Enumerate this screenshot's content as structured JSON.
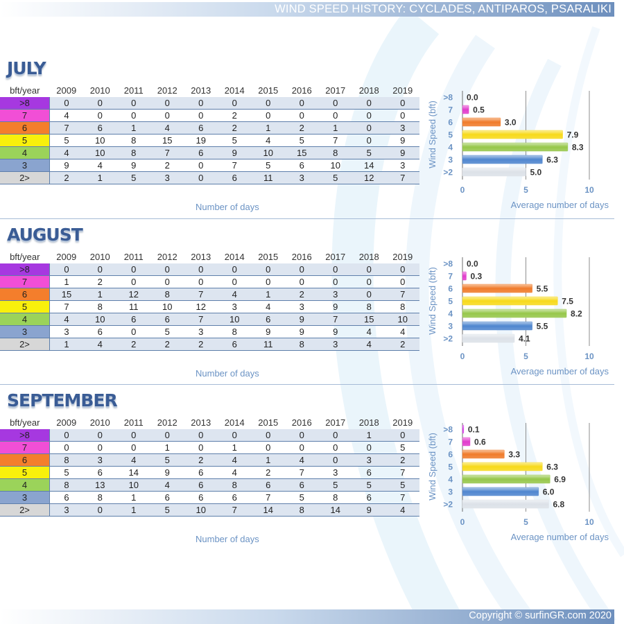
{
  "header": {
    "title": "WIND SPEED HISTORY: CYCLADES, ANTIPAROS, PSARALIKI"
  },
  "footer": {
    "copyright": "Copyright © surfinGR.com 2020"
  },
  "table_header": "bft/year",
  "years": [
    "2009",
    "2010",
    "2011",
    "2012",
    "2013",
    "2014",
    "2015",
    "2016",
    "2017",
    "2018",
    "2019"
  ],
  "table_caption": "Number of days",
  "colors": {
    "bft_row": [
      "#a638e0",
      "#f14fd6",
      "#f47e2c",
      "#f8f00c",
      "#9bd35a",
      "#8aa4cf",
      "#d7d7d7"
    ],
    "bar_fill": [
      "#d63fe6",
      "#e13ccc",
      "#f07b2a",
      "#f7d91a",
      "#96c74a",
      "#4f86cf",
      "#dce1e8"
    ],
    "axis_text": "#6b93c4"
  },
  "months": [
    {
      "title": "JULY",
      "rows": [
        {
          "bft": ">8",
          "values": [
            0,
            0,
            0,
            0,
            0,
            0,
            0,
            0,
            0,
            0,
            0
          ]
        },
        {
          "bft": "7",
          "values": [
            4,
            0,
            0,
            0,
            0,
            2,
            0,
            0,
            0,
            0,
            0
          ]
        },
        {
          "bft": "6",
          "values": [
            7,
            6,
            1,
            4,
            6,
            2,
            1,
            2,
            1,
            0,
            3
          ]
        },
        {
          "bft": "5",
          "values": [
            5,
            10,
            8,
            15,
            19,
            5,
            4,
            5,
            7,
            0,
            9
          ]
        },
        {
          "bft": "4",
          "values": [
            4,
            10,
            8,
            7,
            6,
            9,
            10,
            15,
            8,
            5,
            9
          ]
        },
        {
          "bft": "3",
          "values": [
            9,
            4,
            9,
            2,
            0,
            7,
            5,
            6,
            10,
            14,
            3
          ]
        },
        {
          "bft": "2>",
          "values": [
            2,
            1,
            5,
            3,
            0,
            6,
            11,
            3,
            5,
            12,
            7
          ]
        }
      ]
    },
    {
      "title": "AUGUST",
      "rows": [
        {
          "bft": ">8",
          "values": [
            0,
            0,
            0,
            0,
            0,
            0,
            0,
            0,
            0,
            0,
            0
          ]
        },
        {
          "bft": "7",
          "values": [
            1,
            2,
            0,
            0,
            0,
            0,
            0,
            0,
            0,
            0,
            0
          ]
        },
        {
          "bft": "6",
          "values": [
            15,
            1,
            12,
            8,
            7,
            4,
            1,
            2,
            3,
            0,
            7
          ]
        },
        {
          "bft": "5",
          "values": [
            7,
            8,
            11,
            10,
            12,
            3,
            4,
            3,
            9,
            8,
            8
          ]
        },
        {
          "bft": "4",
          "values": [
            4,
            10,
            6,
            6,
            7,
            10,
            6,
            9,
            7,
            15,
            10
          ]
        },
        {
          "bft": "3",
          "values": [
            3,
            6,
            0,
            5,
            3,
            8,
            9,
            9,
            9,
            4,
            4
          ]
        },
        {
          "bft": "2>",
          "values": [
            1,
            4,
            2,
            2,
            2,
            6,
            11,
            8,
            3,
            4,
            2
          ]
        }
      ]
    },
    {
      "title": "SEPTEMBER",
      "rows": [
        {
          "bft": ">8",
          "values": [
            0,
            0,
            0,
            0,
            0,
            0,
            0,
            0,
            0,
            1,
            0
          ]
        },
        {
          "bft": "7",
          "values": [
            0,
            0,
            0,
            1,
            0,
            1,
            0,
            0,
            0,
            0,
            5
          ]
        },
        {
          "bft": "6",
          "values": [
            8,
            3,
            4,
            5,
            2,
            4,
            1,
            4,
            0,
            3,
            2
          ]
        },
        {
          "bft": "5",
          "values": [
            5,
            6,
            14,
            9,
            6,
            4,
            2,
            7,
            3,
            6,
            7
          ]
        },
        {
          "bft": "4",
          "values": [
            8,
            13,
            10,
            4,
            6,
            8,
            6,
            6,
            5,
            5,
            5
          ]
        },
        {
          "bft": "3",
          "values": [
            6,
            8,
            1,
            6,
            6,
            6,
            7,
            5,
            8,
            6,
            7
          ]
        },
        {
          "bft": "2>",
          "values": [
            3,
            0,
            1,
            5,
            10,
            7,
            14,
            8,
            14,
            9,
            4
          ]
        }
      ]
    }
  ],
  "chart_data": [
    {
      "type": "bar",
      "orientation": "horizontal",
      "title": "JULY",
      "categories": [
        ">8",
        "7",
        "6",
        "5",
        "4",
        "3",
        ">2"
      ],
      "values": [
        0.0,
        0.5,
        3.0,
        7.9,
        8.3,
        6.3,
        5.0
      ],
      "value_labels": [
        "0.0",
        "0.5",
        "3.0",
        "7.9",
        "8.3",
        "6.3",
        "5.0"
      ],
      "xlabel": "Average number of days",
      "ylabel": "Wind Speed (bft)",
      "xlim": [
        0,
        10
      ],
      "xticks": [
        "0",
        "5",
        "10"
      ],
      "grid": true
    },
    {
      "type": "bar",
      "orientation": "horizontal",
      "title": "AUGUST",
      "categories": [
        ">8",
        "7",
        "6",
        "5",
        "4",
        "3",
        ">2"
      ],
      "values": [
        0.0,
        0.3,
        5.5,
        7.5,
        8.2,
        5.5,
        4.1
      ],
      "value_labels": [
        "0.0",
        "0.3",
        "5.5",
        "7.5",
        "8.2",
        "5.5",
        "4.1"
      ],
      "xlabel": "Average number of days",
      "ylabel": "Wind Speed (bft)",
      "xlim": [
        0,
        10
      ],
      "xticks": [
        "0",
        "5",
        "10"
      ],
      "grid": true
    },
    {
      "type": "bar",
      "orientation": "horizontal",
      "title": "SEPTEMBER",
      "categories": [
        ">8",
        "7",
        "6",
        "5",
        "4",
        "3",
        ">2"
      ],
      "values": [
        0.1,
        0.6,
        3.3,
        6.3,
        6.9,
        6.0,
        6.8
      ],
      "value_labels": [
        "0.1",
        "0.6",
        "3.3",
        "6.3",
        "6.9",
        "6.0",
        "6.8"
      ],
      "xlabel": "Average number of days",
      "ylabel": "Wind Speed (bft)",
      "xlim": [
        0,
        10
      ],
      "xticks": [
        "0",
        "5",
        "10"
      ],
      "grid": true
    }
  ]
}
